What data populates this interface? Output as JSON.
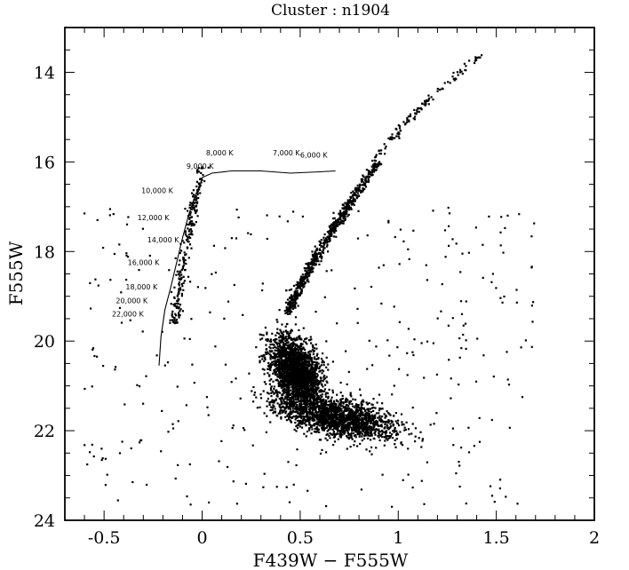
{
  "chart_data": {
    "type": "scatter",
    "title": "Cluster : n1904",
    "xlabel": "F439W − F555W",
    "ylabel": "F555W",
    "xlim": [
      -0.7,
      2.0
    ],
    "ylim": [
      24,
      13
    ],
    "y_inverted": true,
    "grid": false,
    "legend": "none",
    "x_ticks": [
      {
        "value": -0.5,
        "label": "-0.5"
      },
      {
        "value": 0,
        "label": "0"
      },
      {
        "value": 0.5,
        "label": "0.5"
      },
      {
        "value": 1,
        "label": "1"
      },
      {
        "value": 1.5,
        "label": "1.5"
      },
      {
        "value": 2,
        "label": "2"
      }
    ],
    "y_ticks": [
      {
        "value": 14,
        "label": "14"
      },
      {
        "value": 16,
        "label": "16"
      },
      {
        "value": 18,
        "label": "18"
      },
      {
        "value": 20,
        "label": "20"
      },
      {
        "value": 22,
        "label": "22"
      },
      {
        "value": 24,
        "label": "24"
      }
    ],
    "series": [
      {
        "kind": "points",
        "color": "#000000",
        "groups": [
          {
            "region": "main-sequence-turnoff",
            "n": 2200,
            "x_center": 0.48,
            "y_center": 20.7,
            "x_spread": 0.09,
            "y_spread": 0.55,
            "slope": 0.055
          },
          {
            "region": "main-sequence",
            "n": 1800,
            "x_center": 0.7,
            "y_center": 21.7,
            "x_spread": 0.18,
            "y_spread": 0.35,
            "slope": 0.35
          },
          {
            "region": "subgiant-redgiant-branch",
            "n": 700,
            "x_range": [
              0.44,
              0.9
            ],
            "y_range": [
              19.4,
              16.0
            ]
          },
          {
            "region": "upper-red-giant-branch",
            "n": 120,
            "x_range": [
              0.88,
              1.42
            ],
            "y_range": [
              16.0,
              13.6
            ]
          },
          {
            "region": "blue-horizontal-branch",
            "n": 230,
            "x_range": [
              -0.14,
              0.0
            ],
            "y_range": [
              19.6,
              16.1
            ]
          },
          {
            "region": "field-scatter",
            "n": 350,
            "x_range": [
              -0.6,
              1.7
            ],
            "y_range": [
              17.0,
              23.7
            ]
          }
        ]
      },
      {
        "kind": "model-line",
        "name": "zero-age horizontal branch",
        "x": [
          -0.22,
          -0.21,
          -0.19,
          -0.16,
          -0.13,
          -0.1,
          -0.07,
          -0.04,
          -0.01,
          0.0,
          0.05,
          0.15,
          0.3,
          0.45,
          0.6,
          0.68
        ],
        "y": [
          20.55,
          19.9,
          19.3,
          18.8,
          18.25,
          17.7,
          17.2,
          16.8,
          16.5,
          16.35,
          16.25,
          16.2,
          16.2,
          16.25,
          16.22,
          16.2
        ]
      }
    ],
    "annotations": [
      {
        "text": "8,000 K",
        "x": 0.02,
        "y": 15.85
      },
      {
        "text": "7,000 K",
        "x": 0.36,
        "y": 15.85
      },
      {
        "text": "6,000 K",
        "x": 0.5,
        "y": 15.9
      },
      {
        "text": "9,000 K",
        "x": -0.08,
        "y": 16.15
      },
      {
        "text": "10,000 K",
        "x": -0.31,
        "y": 16.7
      },
      {
        "text": "12,000 K",
        "x": -0.33,
        "y": 17.3
      },
      {
        "text": "14,000 K",
        "x": -0.28,
        "y": 17.8
      },
      {
        "text": "16,000 K",
        "x": -0.38,
        "y": 18.3
      },
      {
        "text": "18,000 K",
        "x": -0.39,
        "y": 18.85
      },
      {
        "text": "20,000 K",
        "x": -0.44,
        "y": 19.15
      },
      {
        "text": "22,000 K",
        "x": -0.46,
        "y": 19.45
      }
    ]
  }
}
